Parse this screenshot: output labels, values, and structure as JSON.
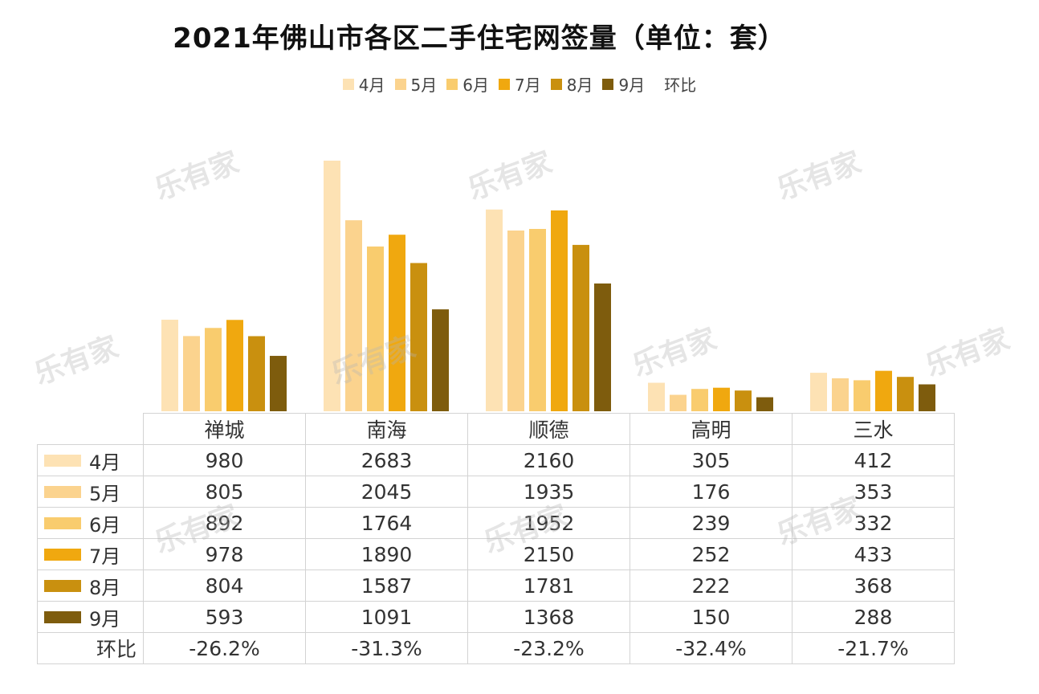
{
  "title": "2021年佛山市各区二手住宅网签量（单位：套）",
  "watermark_text": "乐有家",
  "colors": {
    "4月": "#fde2b4",
    "5月": "#fbd38e",
    "6月": "#f9cc6e",
    "7月": "#f0a80f",
    "8月": "#c9900f",
    "9月": "#7e5c0d"
  },
  "chart_data": {
    "type": "bar",
    "title": "2021年佛山市各区二手住宅网签量（单位：套）",
    "categories": [
      "禅城",
      "南海",
      "顺德",
      "高明",
      "三水"
    ],
    "series": [
      {
        "name": "4月",
        "values": [
          980,
          2683,
          2160,
          305,
          412
        ]
      },
      {
        "name": "5月",
        "values": [
          805,
          2045,
          1935,
          176,
          353
        ]
      },
      {
        "name": "6月",
        "values": [
          892,
          1764,
          1952,
          239,
          332
        ]
      },
      {
        "name": "7月",
        "values": [
          978,
          1890,
          2150,
          252,
          433
        ]
      },
      {
        "name": "8月",
        "values": [
          804,
          1587,
          1781,
          222,
          368
        ]
      },
      {
        "name": "9月",
        "values": [
          593,
          1091,
          1368,
          150,
          288
        ]
      }
    ],
    "mom_label": "环比",
    "mom_values": [
      "-26.2%",
      "-31.3%",
      "-23.2%",
      "-32.4%",
      "-21.7%"
    ],
    "ylim": [
      0,
      2700
    ],
    "legend_position": "top-center",
    "grid": false
  }
}
